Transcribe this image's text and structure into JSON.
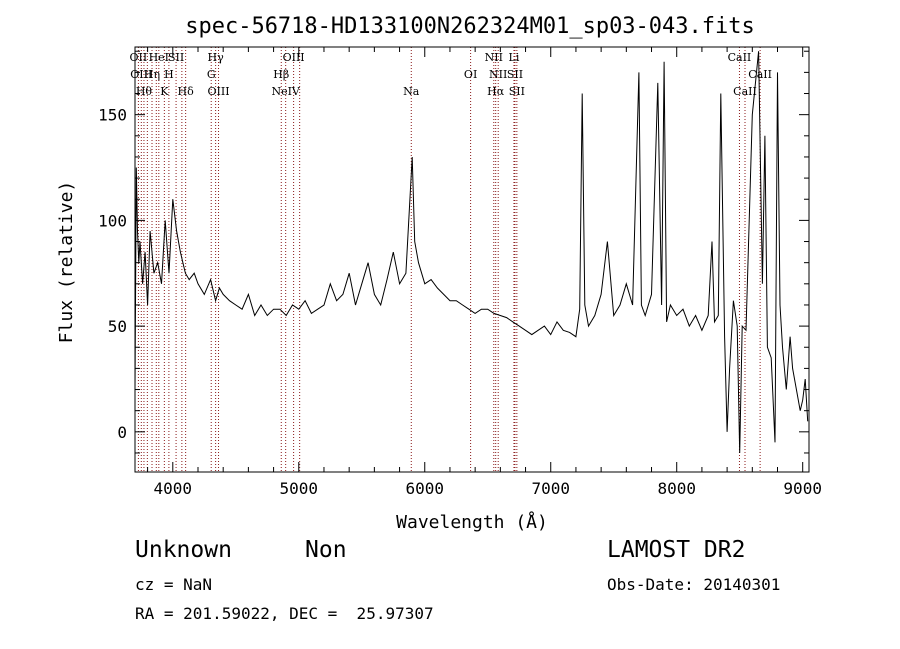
{
  "chart_data": {
    "type": "line",
    "title": "spec-56718-HD133100N262324M01_sp03-043.fits",
    "xlabel": "Wavelength (Å)",
    "ylabel": "Flux (relative)",
    "xlim": [
      3700,
      9050
    ],
    "ylim": [
      -19,
      182
    ],
    "x_ticks": [
      4000,
      5000,
      6000,
      7000,
      8000,
      9000
    ],
    "y_ticks": [
      0,
      50,
      100,
      150
    ],
    "line_color": "#000000",
    "marker_color": "#8b1a1a",
    "series": [
      {
        "x": [
          3700,
          3710,
          3720,
          3730,
          3740,
          3760,
          3780,
          3800,
          3820,
          3850,
          3880,
          3910,
          3940,
          3970,
          4000,
          4030,
          4060,
          4080,
          4100,
          4130,
          4170,
          4200,
          4250,
          4300,
          4340,
          4370,
          4400,
          4450,
          4500,
          4550,
          4600,
          4650,
          4700,
          4750,
          4800,
          4850,
          4900,
          4950,
          5000,
          5050,
          5100,
          5150,
          5200,
          5250,
          5300,
          5350,
          5400,
          5450,
          5500,
          5550,
          5600,
          5650,
          5700,
          5750,
          5800,
          5850,
          5900,
          5920,
          5950,
          6000,
          6050,
          6100,
          6150,
          6200,
          6250,
          6300,
          6350,
          6400,
          6450,
          6500,
          6550,
          6600,
          6650,
          6700,
          6750,
          6800,
          6850,
          6900,
          6950,
          7000,
          7050,
          7100,
          7150,
          7200,
          7230,
          7250,
          7270,
          7300,
          7350,
          7400,
          7450,
          7500,
          7550,
          7600,
          7650,
          7700,
          7720,
          7750,
          7800,
          7850,
          7880,
          7900,
          7920,
          7950,
          8000,
          8050,
          8100,
          8150,
          8200,
          8250,
          8280,
          8300,
          8330,
          8350,
          8380,
          8400,
          8420,
          8450,
          8480,
          8500,
          8520,
          8550,
          8600,
          8650,
          8680,
          8700,
          8720,
          8750,
          8780,
          8800,
          8820,
          8840,
          8870,
          8900,
          8920,
          8950,
          8980,
          9000,
          9020,
          9040
        ],
        "y": [
          20,
          125,
          95,
          80,
          90,
          70,
          85,
          60,
          95,
          75,
          80,
          70,
          100,
          75,
          110,
          95,
          85,
          80,
          75,
          72,
          75,
          70,
          65,
          72,
          62,
          68,
          65,
          62,
          60,
          58,
          65,
          55,
          60,
          55,
          58,
          58,
          55,
          60,
          58,
          62,
          56,
          58,
          60,
          70,
          62,
          65,
          75,
          60,
          70,
          80,
          65,
          60,
          72,
          85,
          70,
          75,
          130,
          90,
          80,
          70,
          72,
          68,
          65,
          62,
          62,
          60,
          58,
          56,
          58,
          58,
          56,
          55,
          54,
          52,
          50,
          48,
          46,
          48,
          50,
          46,
          52,
          48,
          47,
          45,
          58,
          160,
          60,
          50,
          55,
          65,
          90,
          55,
          60,
          70,
          60,
          170,
          60,
          55,
          65,
          165,
          60,
          175,
          52,
          60,
          55,
          58,
          50,
          55,
          48,
          55,
          90,
          52,
          55,
          160,
          45,
          0,
          30,
          62,
          50,
          -10,
          50,
          48,
          150,
          180,
          70,
          140,
          40,
          35,
          -5,
          170,
          60,
          40,
          20,
          45,
          30,
          20,
          10,
          15,
          25,
          5
        ]
      }
    ],
    "lines": [
      {
        "w": 3727,
        "label": "OII",
        "row": 0
      },
      {
        "w": 3750,
        "label": "OIII",
        "row": 1
      },
      {
        "w": 3771,
        "label": "Hθ",
        "row": 2
      },
      {
        "w": 3798,
        "label": "",
        "row": -1
      },
      {
        "w": 3835,
        "label": "Hη",
        "row": 1
      },
      {
        "w": 3869,
        "label": "",
        "row": -1
      },
      {
        "w": 3889,
        "label": "HeI",
        "row": 0
      },
      {
        "w": 3933,
        "label": "K",
        "row": 2
      },
      {
        "w": 3969,
        "label": "H",
        "row": 1
      },
      {
        "w": 4026,
        "label": "SII",
        "row": 0
      },
      {
        "w": 4072,
        "label": "",
        "row": -1
      },
      {
        "w": 4102,
        "label": "Hδ",
        "row": 2
      },
      {
        "w": 4305,
        "label": "G",
        "row": 1
      },
      {
        "w": 4340,
        "label": "Hγ",
        "row": 0
      },
      {
        "w": 4363,
        "label": "OIII",
        "row": 2
      },
      {
        "w": 4861,
        "label": "Hβ",
        "row": 1
      },
      {
        "w": 4896,
        "label": "NeIV",
        "row": 2
      },
      {
        "w": 4959,
        "label": "OIII",
        "row": 0
      },
      {
        "w": 5007,
        "label": "",
        "row": -1
      },
      {
        "w": 5893,
        "label": "Na",
        "row": 2
      },
      {
        "w": 6364,
        "label": "OI",
        "row": 1
      },
      {
        "w": 6548,
        "label": "NII",
        "row": 0
      },
      {
        "w": 6563,
        "label": "Hα",
        "row": 2
      },
      {
        "w": 6583,
        "label": "NII",
        "row": 1
      },
      {
        "w": 6708,
        "label": "Li",
        "row": 0
      },
      {
        "w": 6716,
        "label": "SII",
        "row": 1
      },
      {
        "w": 6731,
        "label": "SII",
        "row": 2
      },
      {
        "w": 8498,
        "label": "CaII",
        "row": 0
      },
      {
        "w": 8542,
        "label": "CaII",
        "row": 2
      },
      {
        "w": 8662,
        "label": "CaII",
        "row": 1
      }
    ]
  },
  "info": {
    "object_class": "Unknown",
    "object_subclass": "Non",
    "survey": "LAMOST DR2",
    "cz": "cz = NaN",
    "obs_date": "Obs-Date: 20140301",
    "coords": "RA = 201.59022, DEC =  25.97307"
  }
}
